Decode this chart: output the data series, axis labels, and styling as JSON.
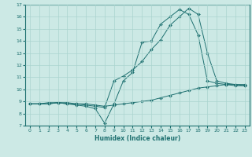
{
  "title": "",
  "xlabel": "Humidex (Indice chaleur)",
  "xlim": [
    -0.5,
    23.5
  ],
  "ylim": [
    7,
    17
  ],
  "xticks": [
    0,
    1,
    2,
    3,
    4,
    5,
    6,
    7,
    8,
    9,
    10,
    11,
    12,
    13,
    14,
    15,
    16,
    17,
    18,
    19,
    20,
    21,
    22,
    23
  ],
  "yticks": [
    7,
    8,
    9,
    10,
    11,
    12,
    13,
    14,
    15,
    16,
    17
  ],
  "bg_color": "#cce9e5",
  "grid_color": "#aad4cf",
  "line_color": "#1e7070",
  "line1_x": [
    0,
    1,
    2,
    3,
    4,
    5,
    6,
    7,
    8,
    9,
    10,
    11,
    12,
    13,
    14,
    15,
    16,
    17,
    18,
    19,
    20,
    21,
    22,
    23
  ],
  "line1_y": [
    8.8,
    8.8,
    8.8,
    8.9,
    8.9,
    8.8,
    8.8,
    8.7,
    8.6,
    8.7,
    8.8,
    8.9,
    9.0,
    9.1,
    9.3,
    9.5,
    9.7,
    9.9,
    10.1,
    10.2,
    10.3,
    10.4,
    10.4,
    10.4
  ],
  "line2_x": [
    0,
    1,
    2,
    3,
    4,
    5,
    6,
    7,
    8,
    9,
    10,
    11,
    12,
    13,
    14,
    15,
    16,
    17,
    18,
    19,
    20,
    21,
    22,
    23
  ],
  "line2_y": [
    8.8,
    8.8,
    8.8,
    8.9,
    8.8,
    8.7,
    8.6,
    8.4,
    7.2,
    8.8,
    10.7,
    11.4,
    13.9,
    14.0,
    15.4,
    16.0,
    16.6,
    16.2,
    14.5,
    10.7,
    10.5,
    10.4,
    10.3,
    10.3
  ],
  "line3_x": [
    0,
    1,
    2,
    3,
    4,
    5,
    6,
    7,
    8,
    9,
    10,
    11,
    12,
    13,
    14,
    15,
    16,
    17,
    18,
    19,
    20,
    21,
    22,
    23
  ],
  "line3_y": [
    8.8,
    8.8,
    8.9,
    8.9,
    8.8,
    8.8,
    8.7,
    8.6,
    8.5,
    10.7,
    11.1,
    11.6,
    12.3,
    13.3,
    14.1,
    15.3,
    16.0,
    16.7,
    16.2,
    13.0,
    10.7,
    10.5,
    10.4,
    10.3
  ]
}
